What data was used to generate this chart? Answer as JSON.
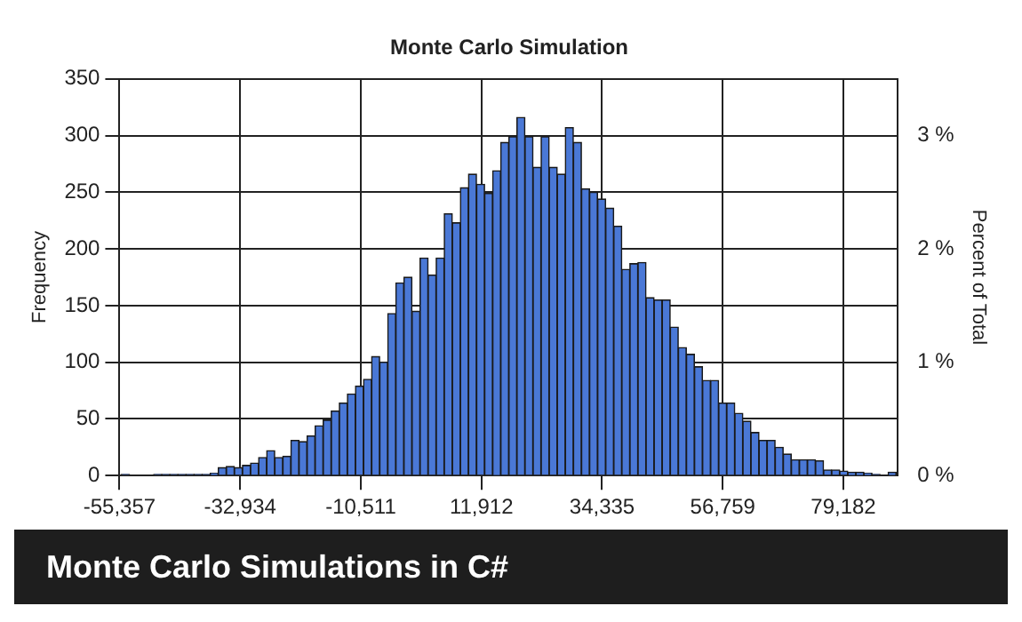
{
  "chart_data": {
    "type": "histogram",
    "title": "Monte Carlo Simulation",
    "ylabel": "Frequency",
    "y2label": "Percent of Total",
    "annotations": [
      "Monte Carlo Simulations in C#"
    ],
    "bins": [
      -55000,
      -53500,
      -52000,
      -50500,
      -49000,
      -47500,
      -46000,
      -44500,
      -43000,
      -41500,
      -40000,
      -38500,
      -37000,
      -35500,
      -34000,
      -32500,
      -31000,
      -29500,
      -28000,
      -26500,
      -25000,
      -23500,
      -22000,
      -20500,
      -19000,
      -17500,
      -16000,
      -14500,
      -13000,
      -11500,
      -10000,
      -8500,
      -7000,
      -5500,
      -4000,
      -2500,
      -1000,
      500,
      2000,
      3500,
      5000,
      6500,
      8000,
      9500,
      11000,
      12500,
      14000,
      15500,
      17000,
      18500,
      20000,
      21500,
      23000,
      24500,
      26000,
      27500,
      29000,
      30500,
      32000,
      33500,
      35000,
      36500,
      38000,
      39500,
      41000,
      42500,
      44000,
      45500,
      47000,
      48500,
      50000,
      51500,
      53000,
      54500,
      56000,
      57500,
      59000,
      60500,
      62000,
      63500,
      65000,
      66500,
      68000,
      69500,
      71000,
      72500,
      74000,
      75500,
      77000,
      78500,
      80000,
      81500,
      83000,
      84500,
      86000,
      87500,
      89000
    ],
    "values": [
      1,
      0,
      0,
      0,
      1,
      1,
      1,
      1,
      1,
      1,
      1,
      2,
      7,
      8,
      7,
      9,
      11,
      16,
      22,
      16,
      17,
      31,
      30,
      35,
      44,
      49,
      57,
      64,
      72,
      79,
      85,
      105,
      100,
      143,
      170,
      175,
      145,
      192,
      177,
      192,
      231,
      223,
      254,
      266,
      257,
      249,
      269,
      294,
      299,
      316,
      299,
      272,
      299,
      272,
      266,
      307,
      294,
      253,
      250,
      244,
      236,
      220,
      182,
      187,
      188,
      157,
      155,
      155,
      131,
      113,
      107,
      96,
      84,
      84,
      64,
      64,
      55,
      48,
      38,
      31,
      31,
      25,
      19,
      14,
      14,
      14,
      13,
      5,
      5,
      4,
      3,
      3,
      2,
      1,
      0,
      3
    ],
    "color": "#4a78d6",
    "xlim": [
      -55357,
      89300
    ],
    "xticks": [
      {
        "value": -55357,
        "label": "-55,357"
      },
      {
        "value": -32934,
        "label": "-32,934"
      },
      {
        "value": -10511,
        "label": "-10,511"
      },
      {
        "value": 11912,
        "label": "11,912"
      },
      {
        "value": 34335,
        "label": "34,335"
      },
      {
        "value": 56759,
        "label": "56,759"
      },
      {
        "value": 79182,
        "label": "79,182"
      }
    ],
    "ylim": [
      0,
      350
    ],
    "yticks": [
      0,
      50,
      100,
      150,
      200,
      250,
      300,
      350
    ],
    "y2lim": [
      0,
      3.5
    ],
    "y2ticks": [
      {
        "value": 0,
        "label": "0 %"
      },
      {
        "value": 1,
        "label": "1 %"
      },
      {
        "value": 2,
        "label": "2 %"
      },
      {
        "value": 3,
        "label": "3 %"
      }
    ],
    "grid": true
  }
}
